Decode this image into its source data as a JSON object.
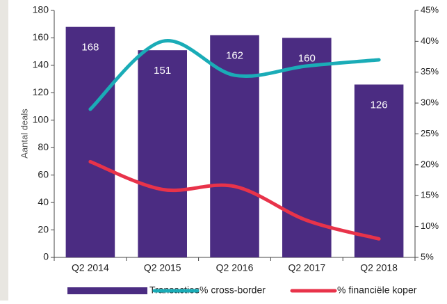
{
  "chart_data": {
    "type": "bar",
    "categories": [
      "Q2 2014",
      "Q2 2015",
      "Q2 2016",
      "Q2 2017",
      "Q2 2018"
    ],
    "ylabel": "Aantal deals",
    "ylim": [
      0,
      180
    ],
    "yticks": [
      0,
      20,
      40,
      60,
      80,
      100,
      120,
      140,
      160,
      180
    ],
    "y2lim": [
      5,
      45
    ],
    "y2ticks": [
      {
        "value": 5,
        "label": "5%"
      },
      {
        "value": 10,
        "label": "10%"
      },
      {
        "value": 15,
        "label": "15%"
      },
      {
        "value": 20,
        "label": "20%"
      },
      {
        "value": 25,
        "label": "25%"
      },
      {
        "value": 30,
        "label": "30%"
      },
      {
        "value": 35,
        "label": "35%"
      },
      {
        "value": 40,
        "label": "40%"
      },
      {
        "value": 45,
        "label": "45%"
      }
    ],
    "legend": "bottom",
    "series": [
      {
        "name": "Transacties",
        "type": "bar",
        "color": "#4b2c82",
        "values": [
          168,
          151,
          162,
          160,
          126
        ]
      },
      {
        "name": "% cross-border",
        "type": "line",
        "axis": "y2",
        "color": "#1aacb7",
        "values": [
          29,
          40,
          34.5,
          36,
          37
        ]
      },
      {
        "name": "% financiële koper",
        "type": "line",
        "axis": "y2",
        "color": "#e8334a",
        "values": [
          20.5,
          16,
          16.5,
          11,
          8
        ]
      }
    ]
  }
}
